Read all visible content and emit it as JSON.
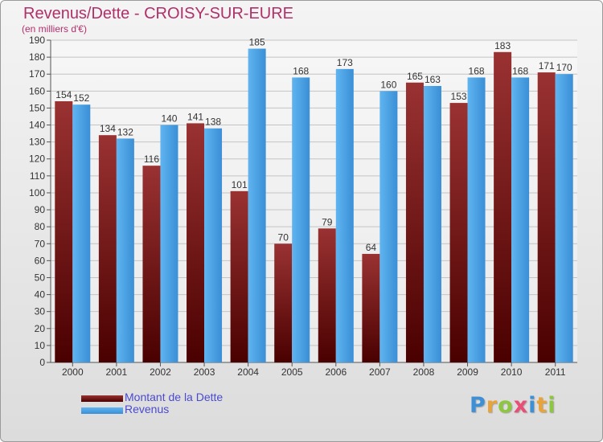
{
  "header": {
    "title": "Revenus/Dette - CROISY-SUR-EURE",
    "subtitle": "(en milliers d'€)"
  },
  "legend": {
    "dette_label": "Montant de la Dette",
    "revenus_label": "Revenus"
  },
  "logo": {
    "text": "Proxiti",
    "letters": [
      {
        "ch": "P",
        "color": "#3d8fd6"
      },
      {
        "ch": "r",
        "color": "#e8a33a"
      },
      {
        "ch": "o",
        "color": "#8dc63f"
      },
      {
        "ch": "x",
        "color": "#e94e77"
      },
      {
        "ch": "i",
        "color": "#3d8fd6"
      },
      {
        "ch": "t",
        "color": "#e8a33a"
      },
      {
        "ch": "i",
        "color": "#8dc63f"
      }
    ]
  },
  "colors": {
    "dette": "#7a1a1a",
    "revenus": "#4aa3e8",
    "title": "#b0306a"
  },
  "chart_data": {
    "type": "bar",
    "categories": [
      "2000",
      "2001",
      "2002",
      "2003",
      "2004",
      "2005",
      "2006",
      "2007",
      "2008",
      "2009",
      "2010",
      "2011"
    ],
    "series": [
      {
        "name": "Montant de la Dette",
        "values": [
          154,
          134,
          116,
          141,
          101,
          70,
          79,
          64,
          165,
          153,
          183,
          171
        ]
      },
      {
        "name": "Revenus",
        "values": [
          152,
          132,
          140,
          138,
          185,
          168,
          173,
          160,
          163,
          168,
          168,
          170
        ]
      }
    ],
    "ylim": [
      0,
      190
    ],
    "ytick_step": 10,
    "grid": true,
    "xlabel": "",
    "ylabel": ""
  }
}
